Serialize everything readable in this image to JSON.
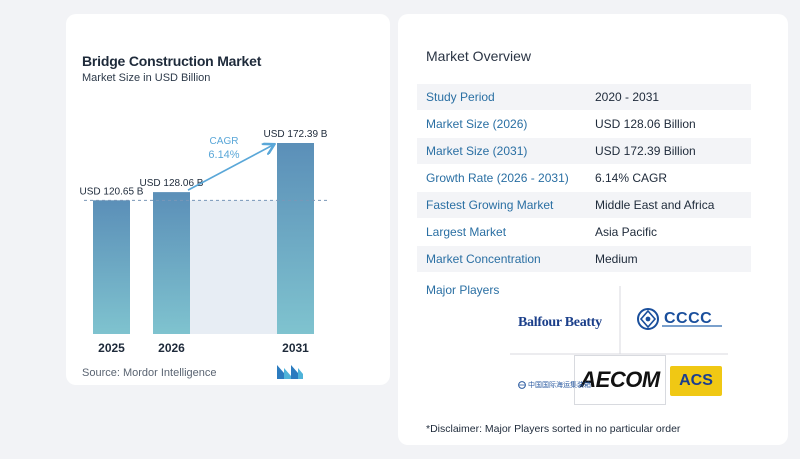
{
  "chart_data": {
    "type": "bar",
    "title": "Bridge Construction Market",
    "subtitle": "Market Size in USD Billion",
    "categories": [
      "2025",
      "2026",
      "2031"
    ],
    "values": [
      120.65,
      128.06,
      172.39
    ],
    "data_labels": [
      "USD 120.65 B",
      "USD 128.06 B",
      "USD 172.39 B"
    ],
    "cagr_label": "CAGR",
    "cagr_value": "6.14%",
    "reference_line": 120.65,
    "ylim": [
      0,
      172.39
    ],
    "grid": false,
    "source": "Source:  Mordor Intelligence",
    "colors": {
      "bar_top": "#5b8fb8",
      "bar_bottom": "#7fc3cf",
      "shade": "#e7edf4",
      "arrow": "#5aa7d8",
      "cagr_text": "#5aa7d8",
      "dashed": "#7a98b8"
    }
  },
  "overview": {
    "title": "Market Overview",
    "rows": [
      {
        "key": "Study Period",
        "value": "2020 - 2031"
      },
      {
        "key": "Market Size (2026)",
        "value": "USD 128.06 Billion"
      },
      {
        "key": "Market Size (2031)",
        "value": "USD 172.39 Billion"
      },
      {
        "key": "Growth Rate (2026 - 2031)",
        "value": "6.14% CAGR"
      },
      {
        "key": "Fastest Growing Market",
        "value": "Middle East and Africa"
      },
      {
        "key": "Largest Market",
        "value": "Asia Pacific"
      },
      {
        "key": "Market Concentration",
        "value": "Medium"
      }
    ],
    "players_title": "Major Players",
    "players": {
      "balfour": "Balfour Beatty",
      "cccc": "CCCC",
      "aecom": "AECOM",
      "acs": "ACS",
      "cn": "中国国际海运集装箱"
    },
    "disclaimer": "*Disclaimer: Major Players sorted in no particular order"
  },
  "icons": [
    "mordor-intelligence-logo",
    "cccc-logo-emblem"
  ]
}
